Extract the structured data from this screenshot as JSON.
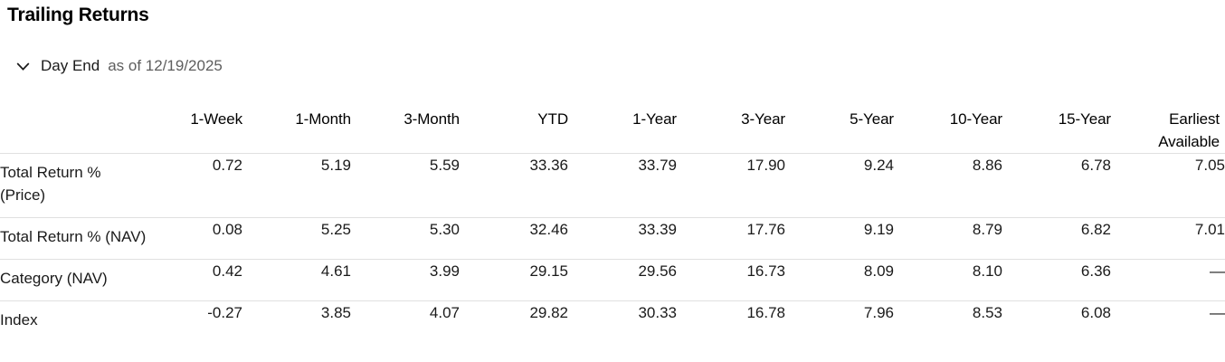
{
  "section": {
    "title": "Trailing Returns",
    "frequency": {
      "selected": "Day End",
      "as_of": "as of 12/19/2025",
      "chevron_icon": "chevron-down"
    }
  },
  "table": {
    "columns": [
      "1-Week",
      "1-Month",
      "3-Month",
      "YTD",
      "1-Year",
      "3-Year",
      "5-Year",
      "10-Year",
      "15-Year",
      "Earliest Available"
    ],
    "rows": [
      {
        "label": "Total Return %\n(Price)",
        "values": [
          "0.72",
          "5.19",
          "5.59",
          "33.36",
          "33.79",
          "17.90",
          "9.24",
          "8.86",
          "6.78",
          "7.05"
        ]
      },
      {
        "label": "Total Return % (NAV)",
        "values": [
          "0.08",
          "5.25",
          "5.30",
          "32.46",
          "33.39",
          "17.76",
          "9.19",
          "8.79",
          "6.82",
          "7.01"
        ]
      },
      {
        "label": "Category (NAV)",
        "values": [
          "0.42",
          "4.61",
          "3.99",
          "29.15",
          "29.56",
          "16.73",
          "8.09",
          "8.10",
          "6.36",
          "—"
        ]
      },
      {
        "label": "Index",
        "values": [
          "-0.27",
          "3.85",
          "4.07",
          "29.82",
          "30.33",
          "16.78",
          "7.96",
          "8.53",
          "6.08",
          "—"
        ]
      }
    ]
  },
  "colors": {
    "title_text": "#000000",
    "header_text": "#000000",
    "body_text": "#1a1a1a",
    "secondary_text": "#5e5e5e",
    "divider": "#e0e0e0",
    "background": "#ffffff"
  }
}
